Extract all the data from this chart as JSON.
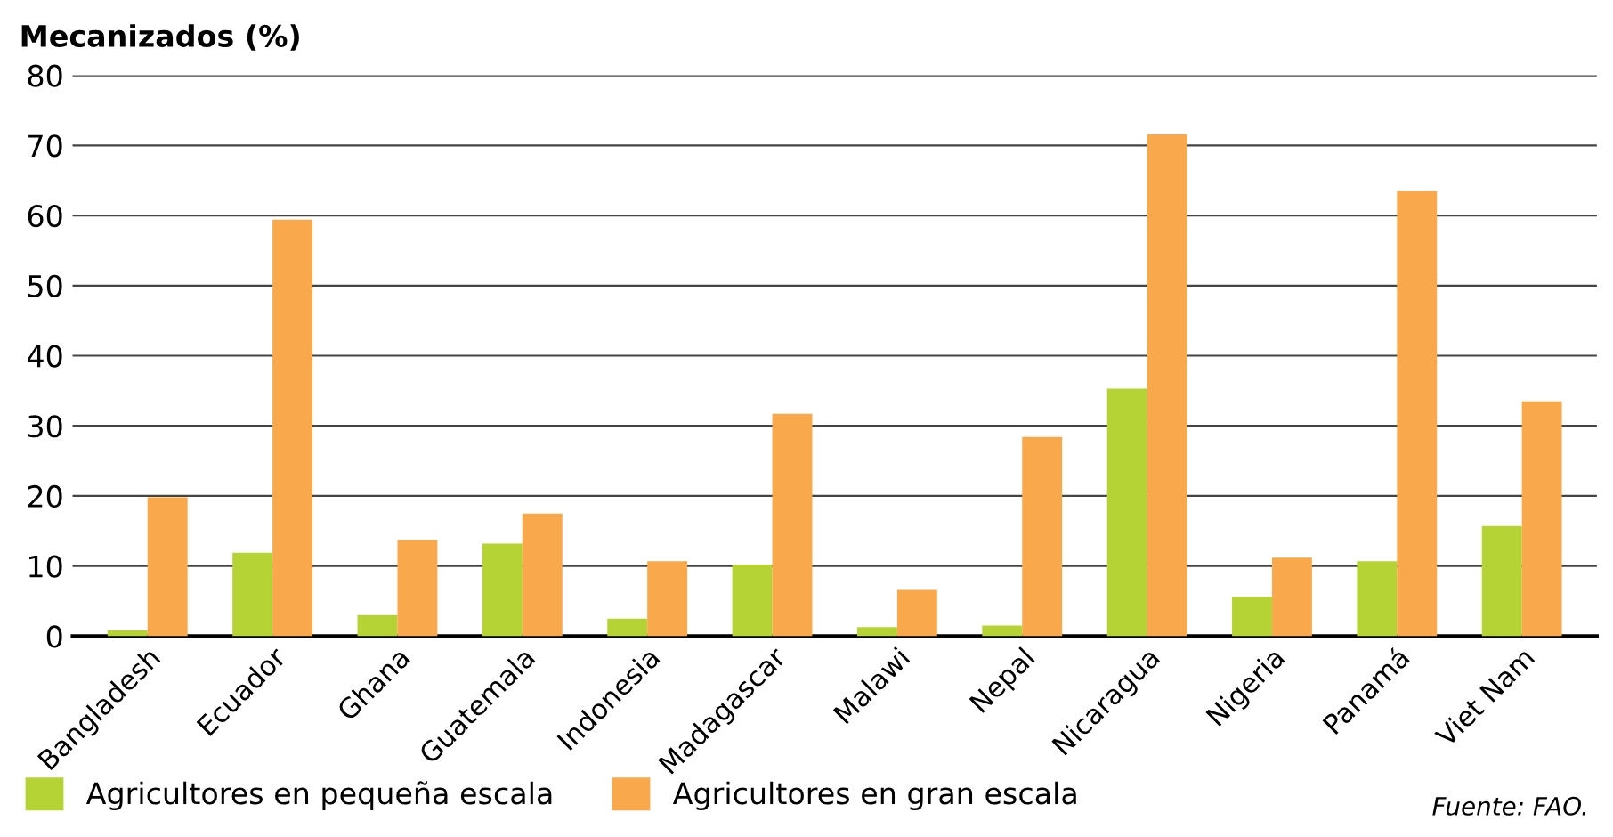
{
  "chart_data": {
    "type": "bar",
    "ylabel": "Mecanizados (%)",
    "categories": [
      "Bangladesh",
      "Ecuador",
      "Ghana",
      "Guatemala",
      "Indonesia",
      "Madagascar",
      "Malawi",
      "Nepal",
      "Nicaragua",
      "Nigeria",
      "Panamá",
      "Viet Nam"
    ],
    "series": [
      {
        "name": "Agricultores en pequeña escala",
        "color": "#b5d334",
        "values": [
          0.8,
          11.9,
          3.0,
          13.2,
          2.5,
          10.2,
          1.3,
          1.5,
          35.3,
          5.6,
          10.7,
          15.7
        ]
      },
      {
        "name": "Agricultores en gran escala",
        "color": "#f9a94b",
        "values": [
          19.8,
          59.4,
          13.7,
          17.5,
          10.7,
          31.7,
          6.6,
          28.4,
          71.6,
          11.2,
          63.5,
          33.5
        ]
      }
    ],
    "ylim": [
      0,
      80
    ],
    "yticks": [
      0,
      10,
      20,
      30,
      40,
      50,
      60,
      70,
      80
    ],
    "grid": "y",
    "legend": "bottom",
    "annotations": [
      "Fuente: FAO."
    ]
  }
}
